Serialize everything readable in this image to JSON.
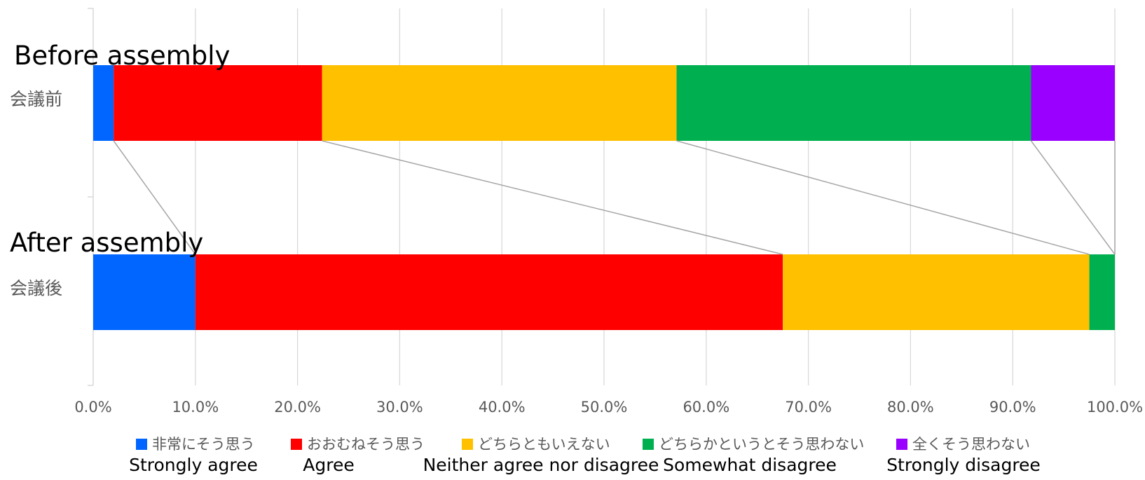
{
  "chart_data": {
    "type": "bar",
    "orientation": "horizontal",
    "stacked": true,
    "connector_lines": true,
    "grid": true,
    "legend_position": "bottom",
    "xlim": [
      0,
      100
    ],
    "x_tick_labels": [
      "0.0%",
      "10.0%",
      "20.0%",
      "30.0%",
      "40.0%",
      "50.0%",
      "60.0%",
      "70.0%",
      "80.0%",
      "90.0%",
      "100.0%"
    ],
    "categories": [
      {
        "label": "会議前",
        "annotation": "Before assembly"
      },
      {
        "label": "会議後",
        "annotation": "After assembly"
      }
    ],
    "series": [
      {
        "name": "非常にそう思う",
        "name_en": "Strongly agree",
        "color": "#0066ff",
        "values": [
          2.0,
          10.0
        ]
      },
      {
        "name": "おおむねそう思う",
        "name_en": "Agree",
        "color": "#ff0000",
        "values": [
          20.4,
          57.5
        ]
      },
      {
        "name": "どちらともいえない",
        "name_en": "Neither agree nor disagree",
        "color": "#ffc000",
        "values": [
          34.7,
          30.0
        ]
      },
      {
        "name": "どちらかというとそう思わない",
        "name_en": "Somewhat disagree",
        "color": "#00b050",
        "values": [
          34.7,
          2.5
        ]
      },
      {
        "name": "全くそう思わない",
        "name_en": "Strongly disagree",
        "color": "#9900ff",
        "values": [
          8.2,
          0.0
        ]
      }
    ]
  }
}
